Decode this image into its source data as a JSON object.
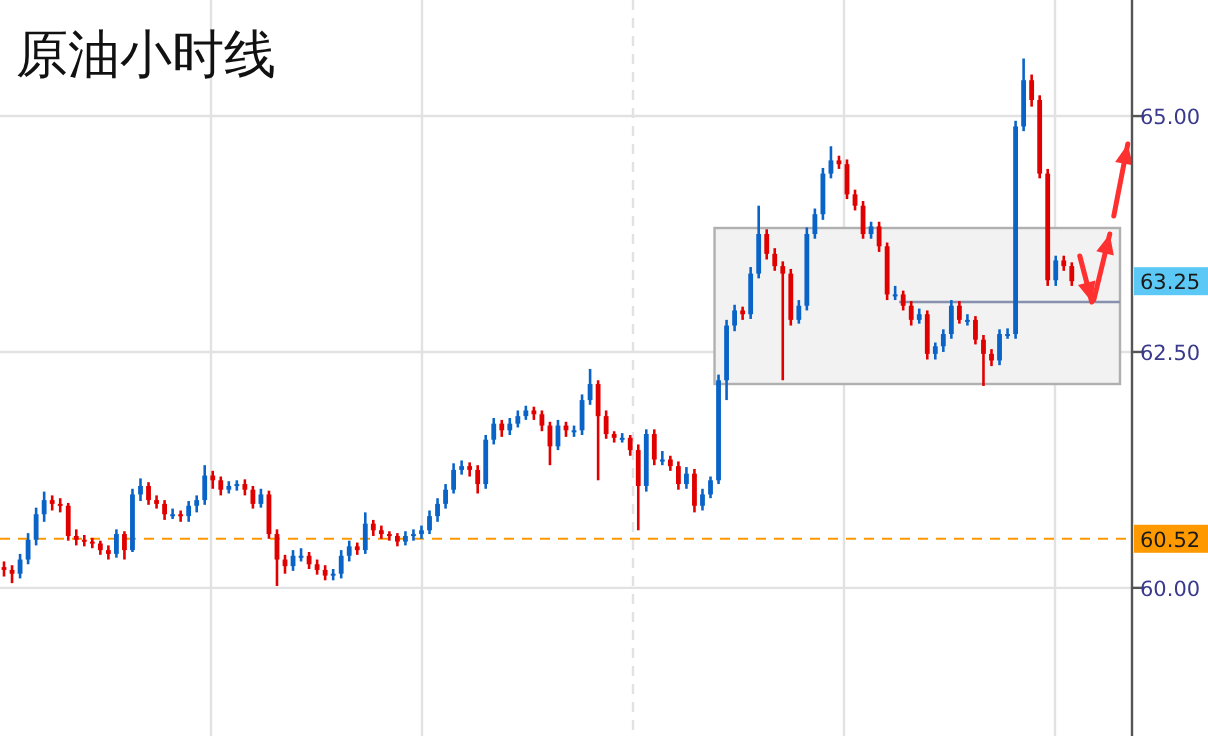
{
  "chart_data": {
    "type": "candlestick",
    "title": "原油小时线",
    "categories": [
      null,
      null,
      null,
      null,
      null,
      null,
      null,
      null,
      null,
      null,
      null,
      null,
      null,
      null,
      null,
      null,
      null,
      null,
      null,
      null,
      null,
      null,
      null,
      null,
      null,
      null,
      null,
      null,
      null,
      null,
      null,
      null,
      null,
      null,
      null,
      null,
      null,
      null,
      null,
      null,
      null,
      null,
      null,
      null,
      null,
      null,
      null,
      null,
      null,
      null,
      null,
      null,
      null,
      null,
      null,
      null,
      null,
      null,
      null,
      null,
      null,
      null,
      null,
      null,
      null,
      null,
      null,
      null,
      null,
      null,
      null,
      null,
      null,
      null,
      null,
      null,
      null,
      null,
      null,
      null,
      null,
      null,
      null,
      null,
      null,
      null,
      null,
      null,
      null,
      null,
      null,
      null,
      null,
      null,
      null,
      null,
      null,
      null,
      null,
      null,
      null,
      null,
      null,
      null,
      null,
      null,
      null,
      null,
      null,
      null,
      null,
      null,
      null,
      null,
      null,
      null,
      null,
      null,
      null,
      null,
      null,
      null,
      null,
      null,
      null,
      null,
      null,
      null,
      null,
      null,
      null,
      null,
      null,
      null,
      null,
      null,
      null,
      null,
      null,
      null,
      null
    ],
    "ohlc": [
      [
        60.22,
        60.28,
        60.12,
        60.19
      ],
      [
        60.19,
        60.24,
        60.05,
        60.15
      ],
      [
        60.15,
        60.36,
        60.1,
        60.3
      ],
      [
        60.3,
        60.58,
        60.25,
        60.51
      ],
      [
        60.51,
        60.85,
        60.45,
        60.78
      ],
      [
        60.78,
        61.02,
        60.7,
        60.93
      ],
      [
        60.93,
        60.98,
        60.82,
        60.89
      ],
      [
        60.89,
        60.95,
        60.8,
        60.87
      ],
      [
        60.87,
        60.9,
        60.5,
        60.55
      ],
      [
        60.55,
        60.62,
        60.45,
        60.51
      ],
      [
        60.51,
        60.56,
        60.44,
        60.49
      ],
      [
        60.49,
        60.53,
        60.42,
        60.47
      ],
      [
        60.47,
        60.5,
        60.35,
        60.4
      ],
      [
        60.4,
        60.45,
        60.3,
        60.36
      ],
      [
        60.36,
        60.62,
        60.32,
        60.57
      ],
      [
        60.57,
        60.6,
        60.3,
        60.4
      ],
      [
        60.4,
        61.05,
        60.38,
        60.99
      ],
      [
        60.99,
        61.16,
        60.92,
        61.08
      ],
      [
        61.08,
        61.12,
        60.88,
        60.93
      ],
      [
        60.93,
        60.98,
        60.84,
        60.89
      ],
      [
        60.89,
        60.93,
        60.72,
        60.78
      ],
      [
        60.78,
        60.84,
        60.73,
        60.78
      ],
      [
        60.78,
        60.82,
        60.7,
        60.76
      ],
      [
        60.76,
        60.92,
        60.7,
        60.87
      ],
      [
        60.87,
        60.98,
        60.8,
        60.93
      ],
      [
        60.93,
        61.3,
        60.88,
        61.19
      ],
      [
        61.19,
        61.24,
        61.05,
        61.14
      ],
      [
        61.14,
        61.18,
        60.98,
        61.04
      ],
      [
        61.04,
        61.13,
        61.0,
        61.08
      ],
      [
        61.08,
        61.14,
        61.03,
        61.1
      ],
      [
        61.1,
        61.15,
        60.98,
        61.04
      ],
      [
        61.04,
        61.08,
        60.84,
        60.89
      ],
      [
        60.89,
        61.05,
        60.85,
        60.99
      ],
      [
        60.99,
        61.03,
        60.52,
        60.57
      ],
      [
        60.57,
        60.62,
        60.02,
        60.3
      ],
      [
        60.3,
        60.35,
        60.15,
        60.23
      ],
      [
        60.23,
        60.4,
        60.18,
        60.34
      ],
      [
        60.34,
        60.42,
        60.28,
        60.34
      ],
      [
        60.34,
        60.38,
        60.2,
        60.25
      ],
      [
        60.25,
        60.3,
        60.14,
        60.19
      ],
      [
        60.19,
        60.24,
        60.08,
        60.13
      ],
      [
        60.13,
        60.2,
        60.08,
        60.15
      ],
      [
        60.15,
        60.4,
        60.1,
        60.34
      ],
      [
        60.34,
        60.5,
        60.28,
        60.44
      ],
      [
        60.44,
        60.48,
        60.35,
        60.4
      ],
      [
        60.4,
        60.8,
        60.36,
        60.68
      ],
      [
        60.68,
        60.72,
        60.55,
        60.61
      ],
      [
        60.61,
        60.66,
        60.52,
        60.57
      ],
      [
        60.57,
        60.6,
        60.5,
        60.55
      ],
      [
        60.55,
        60.58,
        60.44,
        60.49
      ],
      [
        60.49,
        60.6,
        60.45,
        60.55
      ],
      [
        60.55,
        60.62,
        60.5,
        60.57
      ],
      [
        60.57,
        60.66,
        60.52,
        60.61
      ],
      [
        60.61,
        60.82,
        60.57,
        60.76
      ],
      [
        60.76,
        60.95,
        60.7,
        60.89
      ],
      [
        60.89,
        61.1,
        60.84,
        61.04
      ],
      [
        61.04,
        61.32,
        61.0,
        61.25
      ],
      [
        61.25,
        61.35,
        61.2,
        61.29
      ],
      [
        61.29,
        61.33,
        61.18,
        61.25
      ],
      [
        61.25,
        61.3,
        61.0,
        61.1
      ],
      [
        61.1,
        61.62,
        61.05,
        61.57
      ],
      [
        61.57,
        61.8,
        61.52,
        61.74
      ],
      [
        61.74,
        61.78,
        61.6,
        61.67
      ],
      [
        61.67,
        61.8,
        61.62,
        61.74
      ],
      [
        61.74,
        61.88,
        61.7,
        61.82
      ],
      [
        61.82,
        61.93,
        61.78,
        61.88
      ],
      [
        61.88,
        61.92,
        61.78,
        61.84
      ],
      [
        61.84,
        61.88,
        61.66,
        61.72
      ],
      [
        61.72,
        61.76,
        61.3,
        61.5
      ],
      [
        61.5,
        61.78,
        61.46,
        61.72
      ],
      [
        61.72,
        61.76,
        61.6,
        61.67
      ],
      [
        61.67,
        61.72,
        61.6,
        61.67
      ],
      [
        61.67,
        62.05,
        61.62,
        61.99
      ],
      [
        61.99,
        62.32,
        61.94,
        62.16
      ],
      [
        62.16,
        62.2,
        61.14,
        61.82
      ],
      [
        61.82,
        61.88,
        61.58,
        61.63
      ],
      [
        61.63,
        61.66,
        61.54,
        61.59
      ],
      [
        61.59,
        61.64,
        61.54,
        61.59
      ],
      [
        61.59,
        61.62,
        61.4,
        61.46
      ],
      [
        61.46,
        61.52,
        60.61,
        61.08
      ],
      [
        61.08,
        61.68,
        61.02,
        61.63
      ],
      [
        61.63,
        61.68,
        61.3,
        61.36
      ],
      [
        61.36,
        61.45,
        61.3,
        61.36
      ],
      [
        61.36,
        61.4,
        61.24,
        61.29
      ],
      [
        61.29,
        61.34,
        61.04,
        61.1
      ],
      [
        61.1,
        61.28,
        61.05,
        61.21
      ],
      [
        61.21,
        61.26,
        60.8,
        60.87
      ],
      [
        60.87,
        61.05,
        60.82,
        60.99
      ],
      [
        60.99,
        61.18,
        60.95,
        61.14
      ],
      [
        61.14,
        62.26,
        61.1,
        62.2
      ],
      [
        62.2,
        62.84,
        61.99,
        62.78
      ],
      [
        62.78,
        63.0,
        62.72,
        62.94
      ],
      [
        62.94,
        62.98,
        62.84,
        62.9
      ],
      [
        62.9,
        63.4,
        62.85,
        63.33
      ],
      [
        63.33,
        64.05,
        63.28,
        63.75
      ],
      [
        63.75,
        63.8,
        63.48,
        63.54
      ],
      [
        63.54,
        63.6,
        63.36,
        63.41
      ],
      [
        63.41,
        63.46,
        62.2,
        63.33
      ],
      [
        63.33,
        63.38,
        62.78,
        62.84
      ],
      [
        62.84,
        63.05,
        62.8,
        62.99
      ],
      [
        62.99,
        63.82,
        62.94,
        63.75
      ],
      [
        63.75,
        64.02,
        63.7,
        63.96
      ],
      [
        63.96,
        64.45,
        63.9,
        64.39
      ],
      [
        64.39,
        64.68,
        64.34,
        64.53
      ],
      [
        64.53,
        64.58,
        64.44,
        64.49
      ],
      [
        64.49,
        64.54,
        64.12,
        64.17
      ],
      [
        64.17,
        64.22,
        64.0,
        64.05
      ],
      [
        64.05,
        64.1,
        63.7,
        63.75
      ],
      [
        63.75,
        63.88,
        63.7,
        63.83
      ],
      [
        63.83,
        63.88,
        63.56,
        63.62
      ],
      [
        63.62,
        63.66,
        63.05,
        63.11
      ],
      [
        63.11,
        63.2,
        63.05,
        63.11
      ],
      [
        63.11,
        63.15,
        62.94,
        62.99
      ],
      [
        62.99,
        63.04,
        62.78,
        62.84
      ],
      [
        62.84,
        62.96,
        62.8,
        62.9
      ],
      [
        62.9,
        62.94,
        62.42,
        62.48
      ],
      [
        62.48,
        62.6,
        62.42,
        62.56
      ],
      [
        62.56,
        62.74,
        62.5,
        62.69
      ],
      [
        62.69,
        63.05,
        62.64,
        62.99
      ],
      [
        62.99,
        63.04,
        62.8,
        62.84
      ],
      [
        62.84,
        62.9,
        62.78,
        62.84
      ],
      [
        62.84,
        62.88,
        62.58,
        62.63
      ],
      [
        62.63,
        62.68,
        62.14,
        62.48
      ],
      [
        62.48,
        62.53,
        62.35,
        62.41
      ],
      [
        62.41,
        62.74,
        62.36,
        62.69
      ],
      [
        62.69,
        62.75,
        62.64,
        62.69
      ],
      [
        62.69,
        64.95,
        62.64,
        64.89
      ],
      [
        64.89,
        65.61,
        64.84,
        65.38
      ],
      [
        65.38,
        65.44,
        65.1,
        65.17
      ],
      [
        65.17,
        65.22,
        64.34,
        64.39
      ],
      [
        64.39,
        64.44,
        63.2,
        63.26
      ],
      [
        63.26,
        63.52,
        63.2,
        63.47
      ],
      [
        63.47,
        63.52,
        63.36,
        63.41
      ],
      [
        63.41,
        63.45,
        63.2,
        63.25
      ],
      null,
      null,
      null,
      null,
      null,
      null,
      null
    ],
    "colors": [
      "#e00000",
      "#e00000",
      "#0a64c8",
      "#0a64c8",
      "#0a64c8",
      "#0a64c8",
      "#e00000",
      "#e00000",
      "#e00000",
      "#e00000",
      "#e00000",
      "#e00000",
      "#e00000",
      "#e00000",
      "#0a64c8",
      "#e00000",
      "#0a64c8",
      "#0a64c8",
      "#e00000",
      "#e00000",
      "#e00000",
      "#0a64c8",
      "#e00000",
      "#0a64c8",
      "#0a64c8",
      "#0a64c8",
      "#e00000",
      "#e00000",
      "#0a64c8",
      "#0a64c8",
      "#e00000",
      "#e00000",
      "#0a64c8",
      "#e00000",
      "#e00000",
      "#e00000",
      "#0a64c8",
      "#0a64c8",
      "#e00000",
      "#e00000",
      "#e00000",
      "#0a64c8",
      "#0a64c8",
      "#0a64c8",
      "#e00000",
      "#0a64c8",
      "#e00000",
      "#e00000",
      "#e00000",
      "#e00000",
      "#0a64c8",
      "#0a64c8",
      "#0a64c8",
      "#0a64c8",
      "#0a64c8",
      "#0a64c8",
      "#0a64c8",
      "#0a64c8",
      "#e00000",
      "#e00000",
      "#0a64c8",
      "#0a64c8",
      "#e00000",
      "#0a64c8",
      "#0a64c8",
      "#0a64c8",
      "#e00000",
      "#e00000",
      "#e00000",
      "#0a64c8",
      "#e00000",
      "#0a64c8",
      "#0a64c8",
      "#0a64c8",
      "#e00000",
      "#e00000",
      "#e00000",
      "#0a64c8",
      "#e00000",
      "#e00000",
      "#0a64c8",
      "#e00000",
      "#0a64c8",
      "#e00000",
      "#e00000",
      "#0a64c8",
      "#e00000",
      "#0a64c8",
      "#0a64c8",
      "#0a64c8",
      "#0a64c8",
      "#0a64c8",
      "#e00000",
      "#0a64c8",
      "#0a64c8",
      "#e00000",
      "#e00000",
      "#e00000",
      "#e00000",
      "#0a64c8",
      "#0a64c8",
      "#0a64c8",
      "#0a64c8",
      "#0a64c8",
      "#e00000",
      "#e00000",
      "#e00000",
      "#e00000",
      "#0a64c8",
      "#e00000",
      "#e00000",
      "#0a64c8",
      "#e00000",
      "#e00000",
      "#0a64c8",
      "#e00000",
      "#0a64c8",
      "#0a64c8",
      "#0a64c8",
      "#e00000",
      "#0a64c8",
      "#e00000",
      "#e00000",
      "#e00000",
      "#0a64c8",
      "#0a64c8",
      "#0a64c8",
      "#0a64c8",
      "#e00000",
      "#e00000",
      "#e00000",
      "#0a64c8",
      "#e00000",
      "#e00000",
      null,
      null,
      null,
      null,
      null,
      null,
      null
    ],
    "ylim": [
      58.43,
      66.23
    ],
    "yticks": [
      {
        "value": 60,
        "label": "60.00"
      },
      {
        "value": 62.5,
        "label": "62.50"
      },
      {
        "value": 65,
        "label": "65.00"
      }
    ],
    "tick_labels": "y",
    "grid": "y",
    "ref_lines": [
      {
        "axis": "y",
        "value": 60.52,
        "label": "60.52",
        "color": "#ff9900",
        "line_style": "dashed"
      }
    ],
    "annotations": [
      {
        "text": "63.25",
        "y": 63.25
      }
    ]
  }
}
